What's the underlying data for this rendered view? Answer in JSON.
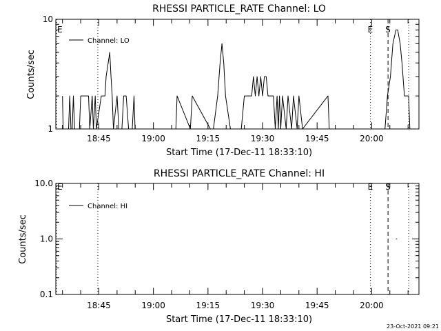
{
  "footer": {
    "timestamp": "23-Oct-2021 09:21"
  },
  "chart_data": [
    {
      "type": "line",
      "title": "RHESSI PARTICLE_RATE Channel: LO",
      "xlabel": "Start Time (17-Dec-11 18:33:10)",
      "ylabel": "Counts/sec",
      "yscale": "log",
      "xlim": [
        "18:33:10",
        "20:13:00"
      ],
      "ylim": [
        1,
        10
      ],
      "xticks": [
        "18:45",
        "19:00",
        "19:15",
        "19:30",
        "19:45",
        "20:00"
      ],
      "yticks": [
        "1",
        "10"
      ],
      "legend_label": "Channel: LO",
      "legend_placement": "top-left",
      "grid": false,
      "markers": [
        {
          "time": "18:33:10",
          "label": "E",
          "style": "dotted"
        },
        {
          "time": "18:44:43",
          "label": "",
          "style": "dotted"
        },
        {
          "time": "19:59:40",
          "label": "E",
          "style": "dotted"
        },
        {
          "time": "20:04:30",
          "label": "S",
          "style": "dashed"
        },
        {
          "time": "20:10:10",
          "label": "",
          "style": "dotted"
        }
      ],
      "series": [
        {
          "name": "Channel: LO",
          "x": [
            "18:35:00",
            "18:35:10",
            "18:36:40",
            "18:37:00",
            "18:37:20",
            "18:37:40",
            "18:38:00",
            "18:38:20",
            "18:39:40",
            "18:40:00",
            "18:42:10",
            "18:42:30",
            "18:43:10",
            "18:43:30",
            "18:44:00",
            "18:44:20",
            "18:45:40",
            "18:46:10",
            "18:46:40",
            "18:47:00",
            "18:48:00",
            "18:48:20",
            "18:48:40",
            "18:49:00",
            "18:50:00",
            "18:50:30",
            "18:51:20",
            "18:51:50",
            "18:52:30",
            "18:53:10",
            "18:54:10",
            "18:54:40",
            "18:54:57",
            "18:55:20",
            "19:01:00",
            "19:06:10",
            "19:06:30",
            "19:10:10",
            "19:10:40",
            "19:15:40",
            "19:16:30",
            "19:17:40",
            "19:18:20",
            "19:18:50",
            "19:19:20",
            "19:19:50",
            "19:21:10",
            "19:22:40",
            "19:24:10",
            "19:25:00",
            "19:26:00",
            "19:27:00",
            "19:27:30",
            "19:28:00",
            "19:28:30",
            "19:29:00",
            "19:29:30",
            "19:30:00",
            "19:30:30",
            "19:31:00",
            "19:31:30",
            "19:32:00",
            "19:32:30",
            "19:33:00",
            "19:33:30",
            "19:34:00",
            "19:34:20",
            "19:34:40",
            "19:35:00",
            "19:35:30",
            "19:36:30",
            "19:37:00",
            "19:38:00",
            "19:38:30",
            "19:39:30",
            "19:40:00",
            "19:41:00",
            "19:48:00",
            "19:48:20",
            "20:03:40",
            "20:04:20",
            "20:05:10",
            "20:05:50",
            "20:06:40",
            "20:07:10",
            "20:07:50",
            "20:08:20",
            "20:09:00",
            "20:09:50",
            "20:10:10",
            "20:10:30"
          ],
          "y": [
            2,
            1,
            1,
            2,
            1,
            1,
            2,
            1,
            1,
            2,
            2,
            1,
            2,
            1,
            2,
            1,
            2,
            2,
            2,
            3,
            5,
            3,
            2,
            1,
            2,
            1,
            1,
            2,
            2,
            1,
            1,
            2,
            1,
            1,
            1,
            1,
            2,
            1,
            2,
            1,
            1,
            2,
            4,
            6,
            4,
            2,
            1,
            1,
            1,
            2,
            2,
            2,
            3,
            2,
            3,
            2,
            3,
            2,
            3,
            3,
            2,
            2,
            2,
            2,
            1,
            2,
            1,
            2,
            1,
            2,
            1,
            2,
            1,
            2,
            1,
            2,
            1,
            2,
            1,
            1,
            2,
            3,
            6,
            8,
            8,
            6,
            4,
            2,
            2,
            2,
            1
          ]
        }
      ]
    },
    {
      "type": "line",
      "title": "RHESSI PARTICLE_RATE Channel: HI",
      "xlabel": "Start Time (17-Dec-11 18:33:10)",
      "ylabel": "Counts/sec",
      "yscale": "log",
      "xlim": [
        "18:33:10",
        "20:13:00"
      ],
      "ylim": [
        0.1,
        10
      ],
      "xticks": [
        "18:45",
        "19:00",
        "19:15",
        "19:30",
        "19:45",
        "20:00"
      ],
      "yticks": [
        "0.1",
        "1.0",
        "10.0"
      ],
      "legend_label": "Channel: HI",
      "legend_placement": "top-left",
      "grid": false,
      "markers": [
        {
          "time": "18:33:10",
          "label": "E",
          "style": "dotted"
        },
        {
          "time": "18:44:43",
          "label": "",
          "style": "dotted"
        },
        {
          "time": "19:59:40",
          "label": "E",
          "style": "dotted"
        },
        {
          "time": "20:04:30",
          "label": "S",
          "style": "dashed"
        },
        {
          "time": "20:10:10",
          "label": "",
          "style": "dotted"
        }
      ],
      "series": [
        {
          "name": "Channel: HI",
          "x": [
            "20:06:40",
            "20:07:00"
          ],
          "y": [
            1,
            1
          ]
        }
      ]
    }
  ]
}
